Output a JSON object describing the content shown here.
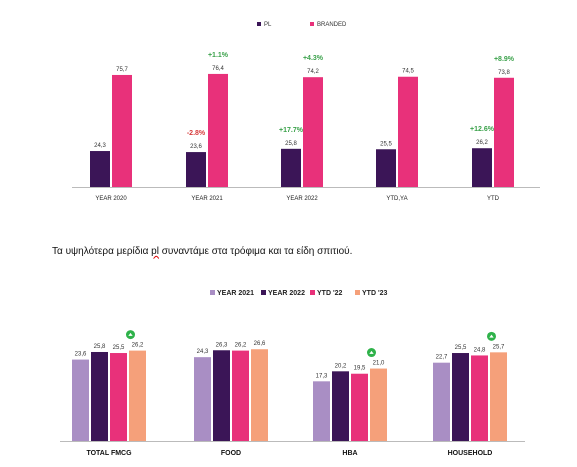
{
  "caption": {
    "before": "Τα υψηλότερα μερίδια ",
    "highlight": "pl",
    "after": " συναντάμε στα τρόφιμα και τα είδη σπιτιού."
  },
  "colors": {
    "pl": "#3b1557",
    "branded": "#e8317a",
    "pos": "#3aa14a",
    "neg": "#d63a3a",
    "year2021": "#a98ec4",
    "year2022": "#3b1557",
    "ytd22": "#e8317a",
    "ytd23": "#f5a07a",
    "badge": "#2fb24a"
  },
  "chart_data": [
    {
      "type": "bar",
      "categories": [
        "YEAR 2020",
        "YEAR 2021",
        "YEAR 2022",
        "YTD,YA",
        "YTD"
      ],
      "series": [
        {
          "name": "PL",
          "values": [
            24.3,
            23.6,
            25.8,
            25.5,
            26.2
          ],
          "labels": [
            "24,3",
            "23,6",
            "25,8",
            "25,5",
            "26,2"
          ],
          "changes": [
            "",
            "-2.8%",
            "+17.7%",
            "",
            "+12.6%"
          ]
        },
        {
          "name": "BRANDED",
          "values": [
            75.7,
            76.4,
            74.2,
            74.5,
            73.8
          ],
          "labels": [
            "75,7",
            "76,4",
            "74,2",
            "74,5",
            "73,8"
          ],
          "changes": [
            "",
            "+1.1%",
            "+4.3%",
            "",
            "+8.9%"
          ]
        }
      ],
      "ylim": [
        0,
        80
      ]
    },
    {
      "type": "bar",
      "categories": [
        "TOTAL FMCG",
        "FOOD",
        "HBA",
        "HOUSEHOLD"
      ],
      "series": [
        {
          "name": "YEAR 2021",
          "values": [
            23.6,
            24.3,
            17.3,
            22.7
          ],
          "labels": [
            "23,6",
            "24,3",
            "17,3",
            "22,7"
          ]
        },
        {
          "name": "YEAR 2022",
          "values": [
            25.8,
            26.3,
            20.2,
            25.5
          ],
          "labels": [
            "25,8",
            "26,3",
            "20,2",
            "25,5"
          ]
        },
        {
          "name": "YTD '22",
          "values": [
            25.5,
            26.2,
            19.5,
            24.8
          ],
          "labels": [
            "25,5",
            "26,2",
            "19,5",
            "24,8"
          ]
        },
        {
          "name": "YTD '23",
          "values": [
            26.2,
            26.6,
            21.0,
            25.7
          ],
          "labels": [
            "26,2",
            "26,6",
            "21,0",
            "25,7"
          ]
        }
      ],
      "badges": [
        true,
        false,
        true,
        true
      ],
      "ylim": [
        0,
        30
      ]
    }
  ]
}
